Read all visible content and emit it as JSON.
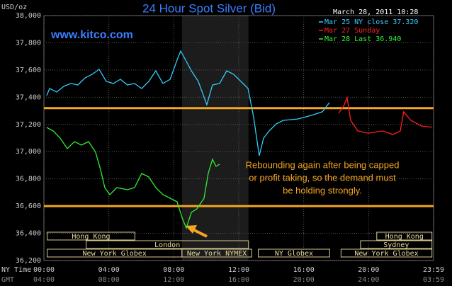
{
  "chart_data": {
    "type": "line",
    "title": "24 Hour Spot Silver (Bid)",
    "y_label": "USD/oz",
    "watermark": "www.kitco.com",
    "date_label": "March 28, 2011 10:28",
    "annotation": [
      "Rebounding again after being capped",
      "or profit taking, so the demand must",
      "be holding strongly."
    ],
    "x_row_label": "NY Time",
    "x2_row_label": "GMT",
    "xlim": [
      0,
      24
    ],
    "xticks": [
      {
        "value": 0,
        "label": "00:00"
      },
      {
        "value": 4,
        "label": "04:00"
      },
      {
        "value": 8,
        "label": "08:00"
      },
      {
        "value": 12,
        "label": "12:00"
      },
      {
        "value": 16,
        "label": "16:00"
      },
      {
        "value": 20,
        "label": "20:00"
      },
      {
        "value": 24,
        "label": "23:59"
      }
    ],
    "gmt_labels": [
      "04:00",
      "08:00",
      "12:00",
      "16:00",
      "20:00",
      "24:00",
      "03:59"
    ],
    "ylim": [
      36200,
      38000
    ],
    "yticks": [
      {
        "value": 36200,
        "label": "36,200"
      },
      {
        "value": 36400,
        "label": "36,400"
      },
      {
        "value": 36600,
        "label": "36,600"
      },
      {
        "value": 36800,
        "label": "36,800"
      },
      {
        "value": 37000,
        "label": "37,000"
      },
      {
        "value": 37200,
        "label": "37,200"
      },
      {
        "value": 37400,
        "label": "37,400"
      },
      {
        "value": 37600,
        "label": "37,600"
      },
      {
        "value": 37800,
        "label": "37,800"
      },
      {
        "value": 38000,
        "label": "38,000"
      }
    ],
    "grid": true,
    "highlight": [
      8.5,
      12.6
    ],
    "reference_lines": [
      37320,
      36600
    ],
    "reference_color": "#f5a623",
    "sessions": [
      {
        "label": "Hong Kong",
        "start": 0.2,
        "end": 5.6,
        "row": 0
      },
      {
        "label": "Hong Kong",
        "start": 20.5,
        "end": 23.9,
        "row": 0
      },
      {
        "label": "London",
        "start": 2.6,
        "end": 12.6,
        "row": 1
      },
      {
        "label": "Sydney",
        "start": 19.5,
        "end": 23.9,
        "row": 1
      },
      {
        "label": "New York Globex",
        "start": 0.2,
        "end": 8.5,
        "row": 2
      },
      {
        "label": "New York NYMEX",
        "start": 8.5,
        "end": 12.8,
        "row": 2
      },
      {
        "label": "NY Globex",
        "start": 13.2,
        "end": 17.6,
        "row": 2
      },
      {
        "label": "New York Globex",
        "start": 18.3,
        "end": 23.9,
        "row": 2
      }
    ],
    "series": [
      {
        "name": "Mar 25 NY close 37.320",
        "color": "#33ccff",
        "x": [
          0.17,
          0.35,
          0.79,
          1.22,
          1.66,
          2.09,
          2.53,
          2.97,
          3.4,
          3.84,
          4.28,
          4.71,
          5.15,
          5.58,
          6.02,
          6.46,
          6.89,
          7.33,
          7.77,
          8.2,
          8.42,
          8.73,
          9.08,
          9.51,
          10.03,
          10.38,
          10.82,
          11.26,
          11.69,
          12.13,
          12.57,
          12.91,
          13.26,
          13.53,
          13.87,
          14.31,
          14.75,
          15.62,
          16.49,
          17.15,
          17.58
        ],
        "values": [
          37412,
          37464,
          37438,
          37480,
          37501,
          37490,
          37542,
          37568,
          37605,
          37516,
          37501,
          37532,
          37490,
          37501,
          37464,
          37516,
          37594,
          37501,
          37532,
          37672,
          37740,
          37672,
          37594,
          37516,
          37345,
          37490,
          37501,
          37594,
          37568,
          37516,
          37464,
          37256,
          36970,
          37100,
          37152,
          37204,
          37230,
          37240,
          37267,
          37293,
          37360
        ]
      },
      {
        "name": "Mar 27 Sunday",
        "color": "#ff2020",
        "x": [
          18.15,
          18.46,
          18.67,
          18.89,
          19.33,
          19.98,
          20.86,
          21.51,
          21.95,
          22.16,
          22.6,
          23.26,
          23.9
        ],
        "values": [
          37282,
          37334,
          37397,
          37230,
          37152,
          37136,
          37152,
          37126,
          37152,
          37293,
          37230,
          37188,
          37180
        ]
      },
      {
        "name": "Mar 28 Last 36.940",
        "color": "#33ee33",
        "x": [
          0.17,
          0.57,
          1.0,
          1.44,
          1.88,
          2.31,
          2.75,
          3.18,
          3.49,
          3.75,
          4.06,
          4.49,
          5.15,
          5.58,
          6.02,
          6.46,
          6.89,
          7.33,
          7.77,
          8.2,
          8.55,
          8.77,
          9.08,
          9.42,
          9.86,
          10.12,
          10.38,
          10.6,
          10.82
        ],
        "values": [
          37178,
          37152,
          37100,
          37022,
          37074,
          37048,
          37074,
          36996,
          36866,
          36736,
          36684,
          36736,
          36720,
          36736,
          36840,
          36814,
          36736,
          36684,
          36658,
          36632,
          36502,
          36439,
          36554,
          36580,
          36658,
          36840,
          36944,
          36892,
          36908
        ]
      }
    ]
  }
}
